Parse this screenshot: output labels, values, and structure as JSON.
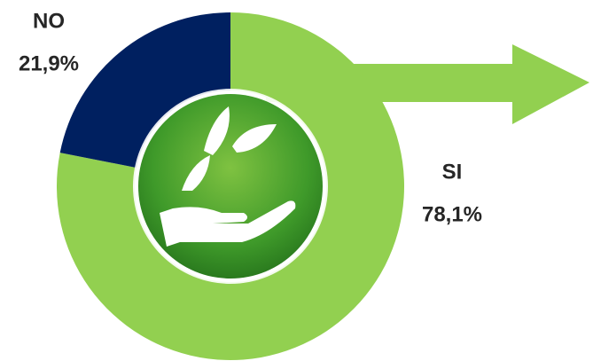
{
  "chart_data": {
    "type": "donut",
    "categories": [
      "SI",
      "NO"
    ],
    "values": [
      78.1,
      21.9
    ],
    "value_labels": [
      "78,1%",
      "21,9%"
    ],
    "colors": [
      "#92d050",
      "#002060"
    ]
  }
}
